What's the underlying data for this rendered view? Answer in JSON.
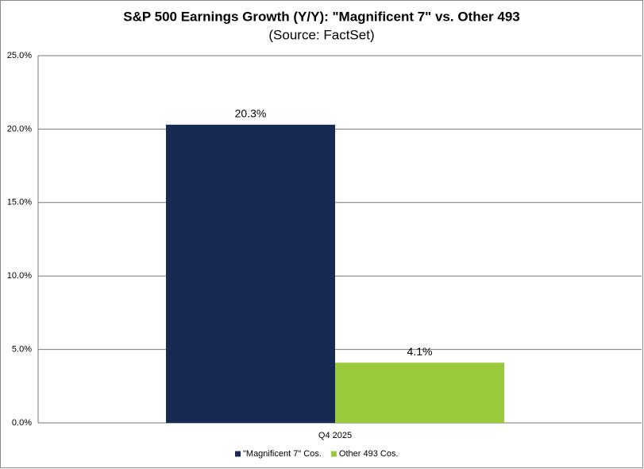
{
  "chart_data": {
    "type": "bar",
    "title": "S&P 500 Earnings Growth (Y/Y): \"Magnificent 7\" vs. Other 493",
    "subtitle": "(Source: FactSet)",
    "categories": [
      "Q4 2025"
    ],
    "series": [
      {
        "name": "\"Magnificent 7\" Cos.",
        "color": "#172a52",
        "values": [
          20.3
        ],
        "value_labels": [
          "20.3%"
        ]
      },
      {
        "name": "Other 493 Cos.",
        "color": "#9aca3c",
        "values": [
          4.1
        ],
        "value_labels": [
          "4.1%"
        ]
      }
    ],
    "ylim": [
      0,
      25
    ],
    "yticks": [
      {
        "value": 0,
        "label": "0.0%"
      },
      {
        "value": 5,
        "label": "5.0%"
      },
      {
        "value": 10,
        "label": "10.0%"
      },
      {
        "value": 15,
        "label": "15.0%"
      },
      {
        "value": 20,
        "label": "20.0%"
      },
      {
        "value": 25,
        "label": "25.0%"
      }
    ],
    "grid": true,
    "legend": "bottom"
  }
}
